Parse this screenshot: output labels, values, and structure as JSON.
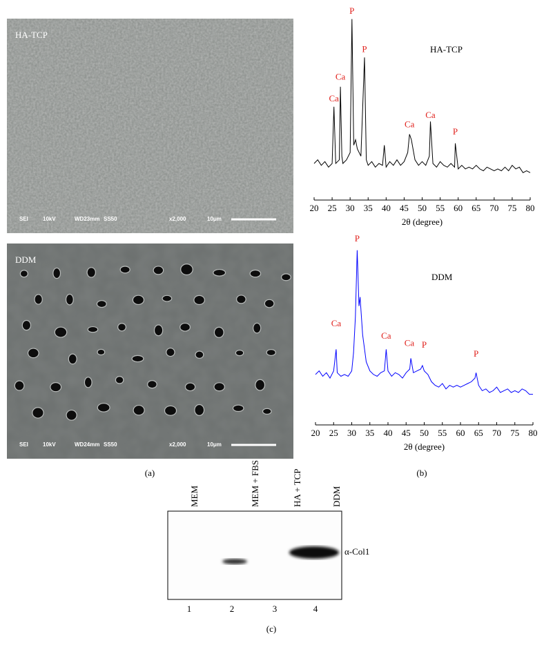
{
  "sem_images": [
    {
      "label": "HA-TCP",
      "info": [
        "SEI",
        "10kV",
        "WD23mm",
        "SS50",
        "x2,000",
        "10μm"
      ]
    },
    {
      "label": "DDM",
      "info": [
        "SEI",
        "10kV",
        "WD24mm",
        "SS50",
        "x2,000",
        "10μm"
      ]
    }
  ],
  "chart_data": [
    {
      "type": "line",
      "title": "HA-TCP",
      "x_label": "2θ (degree)",
      "color": "#000000",
      "annotation_color": "#e0201b",
      "xlim": [
        20,
        80
      ],
      "xticks": [
        20,
        25,
        30,
        35,
        40,
        45,
        50,
        55,
        60,
        65,
        70,
        75,
        80
      ],
      "ylim": [
        0,
        100
      ],
      "x": [
        20,
        21,
        22,
        23,
        24,
        25,
        25.5,
        26,
        27,
        27.3,
        27.7,
        28,
        29,
        30,
        30.5,
        31,
        31.5,
        32,
        33,
        34,
        34.5,
        35,
        36,
        37,
        38,
        39,
        39.5,
        40,
        41,
        42,
        43,
        44,
        45,
        46,
        46.5,
        47,
        48,
        49,
        50,
        51,
        52,
        52.3,
        53,
        54,
        55,
        56,
        57,
        58,
        59,
        59.2,
        60,
        61,
        62,
        63,
        64,
        65,
        66,
        67,
        68,
        69,
        70,
        71,
        72,
        73,
        74,
        75,
        76,
        77,
        78,
        79,
        80
      ],
      "values": [
        20,
        22,
        19,
        21,
        18,
        20,
        51,
        20,
        22,
        62,
        24,
        20,
        22,
        26,
        99,
        30,
        33,
        28,
        24,
        78,
        22,
        19,
        21,
        18,
        20,
        19,
        30,
        18,
        21,
        19,
        22,
        19,
        21,
        26,
        36,
        33,
        22,
        19,
        21,
        19,
        24,
        43,
        20,
        18,
        21,
        19,
        18,
        20,
        18,
        31,
        17,
        19,
        17,
        18,
        17,
        19,
        17,
        16,
        18,
        17,
        16,
        17,
        16,
        18,
        16,
        19,
        17,
        18,
        15,
        16,
        15
      ],
      "annotations": [
        {
          "text": "Ca",
          "x": 25.5,
          "y": 55
        },
        {
          "text": "Ca",
          "x": 27.3,
          "y": 67
        },
        {
          "text": "P",
          "x": 30.5,
          "y": 103
        },
        {
          "text": "P",
          "x": 34,
          "y": 82
        },
        {
          "text": "Ca",
          "x": 46.5,
          "y": 41
        },
        {
          "text": "Ca",
          "x": 52.3,
          "y": 46
        },
        {
          "text": "P",
          "x": 59.2,
          "y": 37
        }
      ]
    },
    {
      "type": "line",
      "title": "DDM",
      "x_label": "2θ (degree)",
      "color": "#0000ff",
      "annotation_color": "#e0201b",
      "xlim": [
        20,
        80
      ],
      "xticks": [
        20,
        25,
        30,
        35,
        40,
        45,
        50,
        55,
        60,
        65,
        70,
        75,
        80
      ],
      "ylim": [
        0,
        100
      ],
      "x": [
        20,
        21,
        22,
        23,
        24,
        25,
        25.7,
        26,
        27,
        28,
        29,
        30,
        30.5,
        31,
        31.5,
        32,
        32.3,
        33,
        34,
        35,
        36,
        37,
        38,
        39,
        39.5,
        40,
        41,
        42,
        43,
        44,
        45,
        46,
        46.3,
        47,
        48,
        49,
        49.5,
        50,
        51,
        52,
        53,
        54,
        55,
        56,
        57,
        58,
        59,
        60,
        61,
        62,
        63,
        64,
        64.3,
        65,
        66,
        67,
        68,
        69,
        70,
        71,
        72,
        73,
        74,
        75,
        76,
        77,
        78,
        79,
        80
      ],
      "values": [
        28,
        30,
        27,
        29,
        26,
        30,
        42,
        29,
        27,
        28,
        27,
        30,
        40,
        60,
        97,
        66,
        71,
        50,
        35,
        30,
        28,
        27,
        29,
        30,
        42,
        30,
        27,
        29,
        28,
        26,
        29,
        31,
        37,
        29,
        30,
        31,
        33,
        30,
        28,
        24,
        22,
        21,
        23,
        20,
        22,
        21,
        22,
        21,
        22,
        23,
        24,
        26,
        29,
        22,
        19,
        20,
        18,
        19,
        21,
        18,
        19,
        20,
        18,
        19,
        18,
        20,
        19,
        17,
        17
      ],
      "annotations": [
        {
          "text": "Ca",
          "x": 25.7,
          "y": 56
        },
        {
          "text": "P",
          "x": 31.5,
          "y": 103
        },
        {
          "text": "Ca",
          "x": 39.5,
          "y": 49
        },
        {
          "text": "Ca",
          "x": 45.9,
          "y": 45
        },
        {
          "text": "P",
          "x": 50,
          "y": 44
        },
        {
          "text": "P",
          "x": 64.3,
          "y": 39
        }
      ]
    }
  ],
  "blot": {
    "lanes": [
      "MEM",
      "MEM + FBS",
      "HA + TCP",
      "DDM"
    ],
    "lane_numbers": [
      "1",
      "2",
      "3",
      "4"
    ],
    "band_label": "α-Col1"
  },
  "panel_labels": [
    "(a)",
    "(b)",
    "(c)"
  ]
}
